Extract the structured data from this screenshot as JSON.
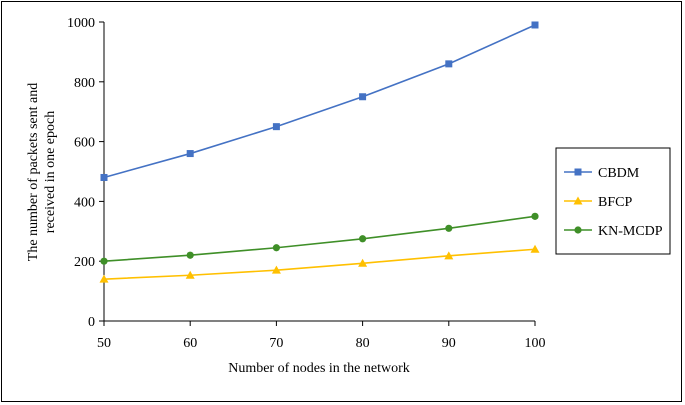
{
  "chart_data": {
    "type": "line",
    "x": [
      50,
      60,
      70,
      80,
      90,
      100
    ],
    "xlabel": "Number of nodes in the network",
    "ylabel_lines": [
      "The number of packets sent and",
      "received in one epoch"
    ],
    "xlim": [
      50,
      100
    ],
    "ylim": [
      0,
      1000
    ],
    "x_ticks": [
      "50",
      "60",
      "70",
      "80",
      "90",
      "100"
    ],
    "y_ticks": [
      "0",
      "200",
      "400",
      "600",
      "800",
      "1000"
    ],
    "grid": false,
    "legend_position": "right",
    "series": [
      {
        "name": "CBDM",
        "color": "#4472c4",
        "marker": "square",
        "values": [
          480,
          560,
          650,
          750,
          860,
          990
        ]
      },
      {
        "name": "BFCP",
        "color": "#ffc000",
        "marker": "triangle",
        "values": [
          140,
          153,
          170,
          193,
          218,
          240
        ]
      },
      {
        "name": "KN-MCDP",
        "color": "#3f8f28",
        "marker": "circle",
        "values": [
          200,
          220,
          245,
          275,
          310,
          350
        ]
      }
    ]
  }
}
